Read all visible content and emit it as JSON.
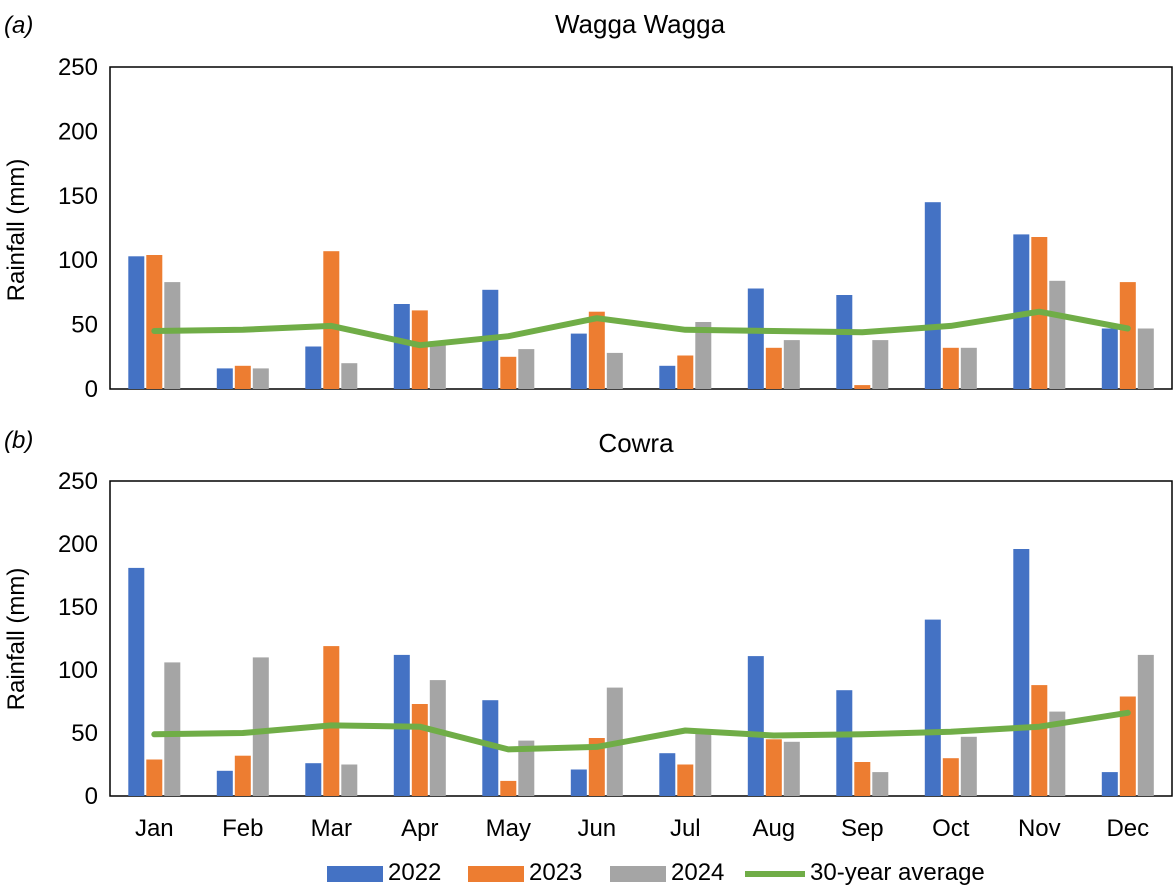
{
  "colors": {
    "2022": "#4472C4",
    "2023": "#ED7D31",
    "2024": "#A5A5A5",
    "avg": "#70AD47"
  },
  "legend": {
    "items": [
      {
        "label": "2022",
        "kind": "bar",
        "color": "#4472C4"
      },
      {
        "label": "2023",
        "kind": "bar",
        "color": "#ED7D31"
      },
      {
        "label": "2024",
        "kind": "bar",
        "color": "#A5A5A5"
      },
      {
        "label": "30-year average",
        "kind": "line",
        "color": "#70AD47"
      }
    ]
  },
  "chart_data": [
    {
      "type": "bar",
      "panel_label": "a",
      "title": "Wagga Wagga",
      "xlabel": "",
      "ylabel": "Rainfall (mm)",
      "ylim": [
        0,
        250
      ],
      "yticks": [
        0,
        50,
        100,
        150,
        200,
        250
      ],
      "grid": false,
      "categories": [
        "Jan",
        "Feb",
        "Mar",
        "Apr",
        "May",
        "Jun",
        "Jul",
        "Aug",
        "Sep",
        "Oct",
        "Nov",
        "Dec"
      ],
      "series": [
        {
          "name": "2022",
          "type": "bar",
          "values": [
            103,
            16,
            33,
            66,
            77,
            43,
            18,
            78,
            73,
            145,
            120,
            47
          ]
        },
        {
          "name": "2023",
          "type": "bar",
          "values": [
            104,
            18,
            107,
            61,
            25,
            60,
            26,
            32,
            3,
            32,
            118,
            83
          ]
        },
        {
          "name": "2024",
          "type": "bar",
          "values": [
            83,
            16,
            20,
            37,
            31,
            28,
            52,
            38,
            38,
            32,
            84,
            47
          ]
        },
        {
          "name": "30-year average",
          "type": "line",
          "values": [
            45,
            46,
            49,
            34,
            41,
            55,
            46,
            45,
            44,
            49,
            60,
            47
          ]
        }
      ]
    },
    {
      "type": "bar",
      "panel_label": "b",
      "title": "Cowra",
      "xlabel": "",
      "ylabel": "Rainfall (mm)",
      "ylim": [
        0,
        250
      ],
      "yticks": [
        0,
        50,
        100,
        150,
        200,
        250
      ],
      "grid": false,
      "categories": [
        "Jan",
        "Feb",
        "Mar",
        "Apr",
        "May",
        "Jun",
        "Jul",
        "Aug",
        "Sep",
        "Oct",
        "Nov",
        "Dec"
      ],
      "series": [
        {
          "name": "2022",
          "type": "bar",
          "values": [
            181,
            20,
            26,
            112,
            76,
            21,
            34,
            111,
            84,
            140,
            196,
            19
          ]
        },
        {
          "name": "2023",
          "type": "bar",
          "values": [
            29,
            32,
            119,
            73,
            12,
            46,
            25,
            45,
            27,
            30,
            88,
            79
          ]
        },
        {
          "name": "2024",
          "type": "bar",
          "values": [
            106,
            110,
            25,
            92,
            44,
            86,
            51,
            43,
            19,
            47,
            67,
            112
          ]
        },
        {
          "name": "30-year average",
          "type": "line",
          "values": [
            49,
            50,
            56,
            55,
            37,
            39,
            52,
            48,
            49,
            51,
            55,
            66
          ]
        }
      ]
    }
  ]
}
